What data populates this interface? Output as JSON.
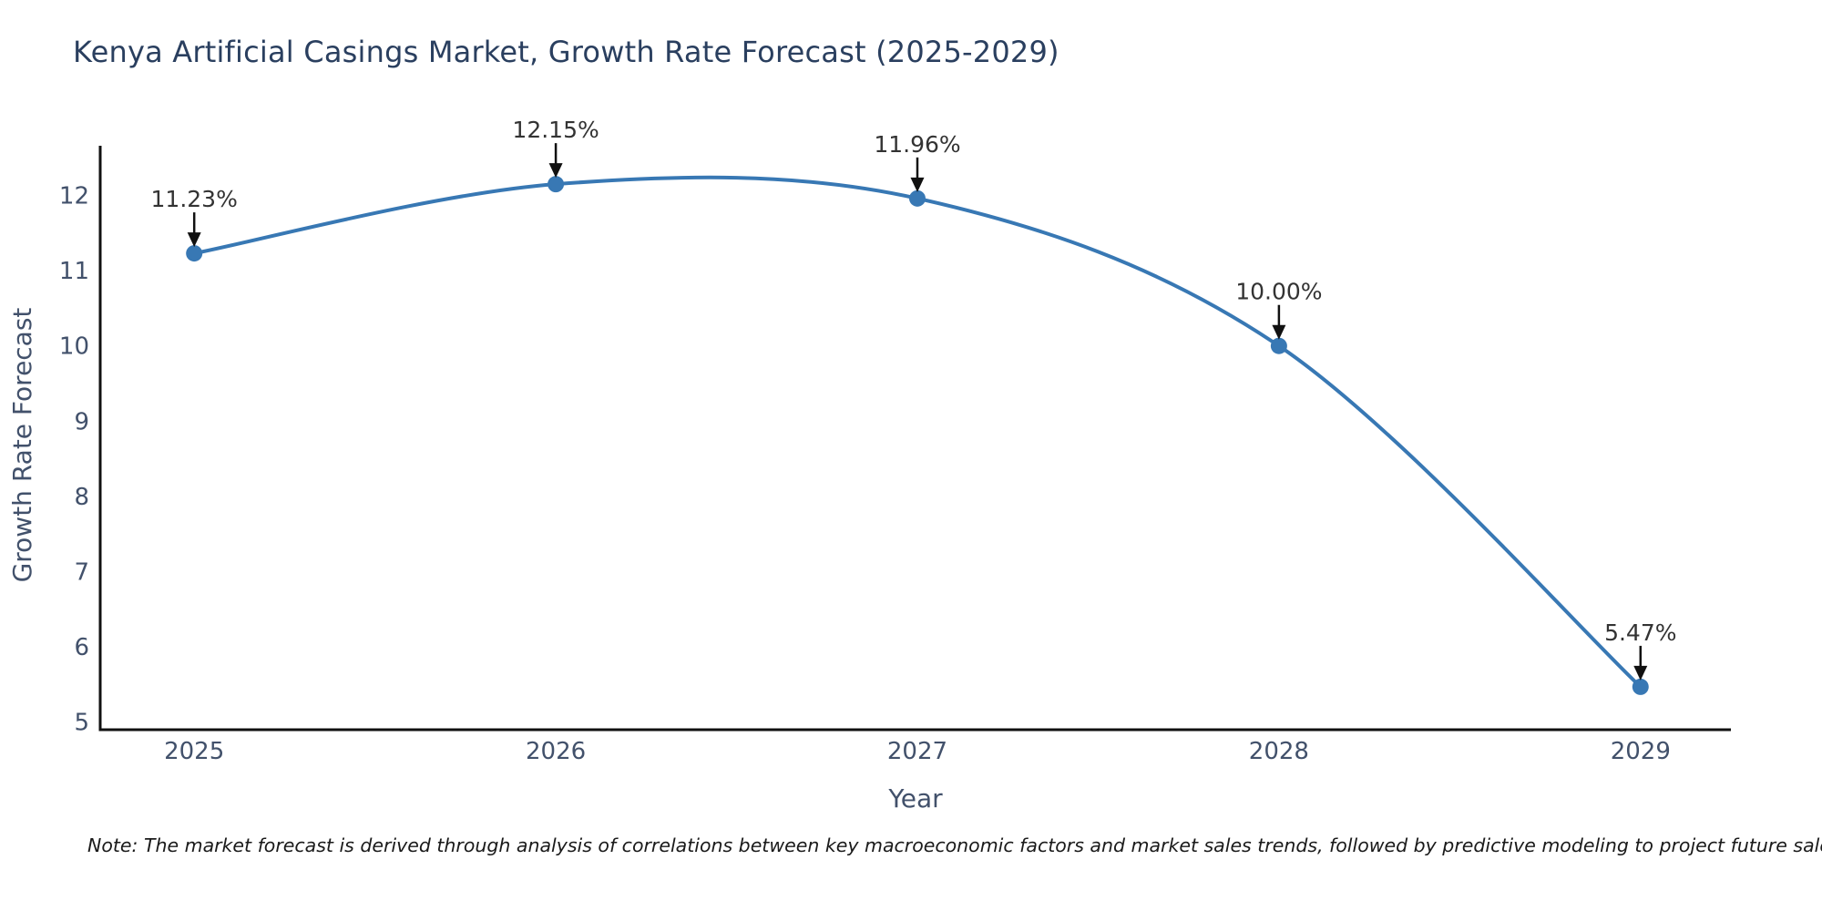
{
  "chart_data": {
    "type": "line",
    "line_shape": "spline",
    "title": "Kenya Artificial Casings Market, Growth Rate Forecast (2025-2029)",
    "xlabel": "Year",
    "ylabel": "Growth Rate Forecast",
    "x": [
      2025,
      2026,
      2027,
      2028,
      2029
    ],
    "values": [
      11.23,
      12.15,
      11.96,
      10.0,
      5.47
    ],
    "point_labels": [
      "11.23%",
      "12.15%",
      "11.96%",
      "10.00%",
      "5.47%"
    ],
    "xticks": [
      "2025",
      "2026",
      "2027",
      "2028",
      "2029"
    ],
    "yticks": [
      5,
      6,
      7,
      8,
      9,
      10,
      11,
      12
    ],
    "xlim": [
      2024.74,
      2029.25
    ],
    "ylim": [
      4.9,
      12.66
    ],
    "grid": false,
    "legend": "none",
    "colors": {
      "line": "#3878b4",
      "marker": "#3878b4",
      "axis": "#111111",
      "tick_label": "#42516b",
      "axis_title": "#42516b",
      "annotation_text": "#333333",
      "annotation_arrow": "#111111",
      "title": "#2a3f5f"
    }
  },
  "note": {
    "text": "Note: The market forecast is derived through analysis of correlations between key macroeconomic factors and market sales trends, followed by predictive modeling to project future sales"
  }
}
